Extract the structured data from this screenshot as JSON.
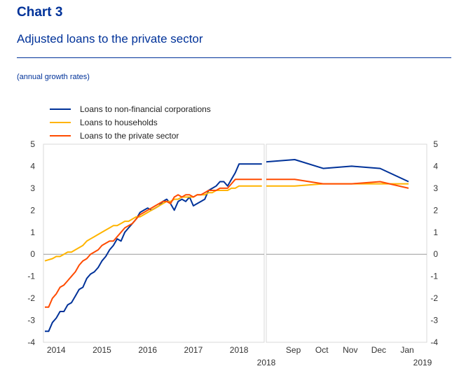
{
  "header": {
    "chart_label": "Chart 3",
    "title": "Adjusted loans to the private sector",
    "units": "(annual growth rates)"
  },
  "chart_data": {
    "type": "line",
    "ylim": [
      -4,
      5
    ],
    "y_ticks": [
      "5",
      "4",
      "3",
      "2",
      "1",
      "0",
      "-1",
      "-2",
      "-3",
      "-4"
    ],
    "grid": false,
    "legend": "top-left",
    "panels": [
      {
        "name": "monthly",
        "x_ticks": [
          "2014",
          "2015",
          "2016",
          "2017",
          "2018"
        ],
        "x": [
          2013.75,
          2013.833,
          2013.917,
          2014.0,
          2014.083,
          2014.167,
          2014.25,
          2014.333,
          2014.417,
          2014.5,
          2014.583,
          2014.667,
          2014.75,
          2014.833,
          2014.917,
          2015.0,
          2015.083,
          2015.167,
          2015.25,
          2015.333,
          2015.417,
          2015.5,
          2015.583,
          2015.667,
          2015.75,
          2015.833,
          2015.917,
          2016.0,
          2016.083,
          2016.167,
          2016.25,
          2016.333,
          2016.417,
          2016.5,
          2016.583,
          2016.667,
          2016.75,
          2016.833,
          2016.917,
          2017.0,
          2017.083,
          2017.167,
          2017.25,
          2017.333,
          2017.417,
          2017.5,
          2017.583,
          2017.667,
          2017.75,
          2017.833,
          2017.917,
          2018.0,
          2018.083,
          2018.167,
          2018.25,
          2018.333,
          2018.417,
          2018.5
        ],
        "series": [
          {
            "name": "Loans to non-financial corporations",
            "color": "#003299",
            "values": [
              -3.5,
              -3.5,
              -3.1,
              -2.9,
              -2.6,
              -2.6,
              -2.3,
              -2.2,
              -1.9,
              -1.6,
              -1.5,
              -1.1,
              -0.9,
              -0.8,
              -0.6,
              -0.3,
              -0.1,
              0.2,
              0.4,
              0.7,
              0.6,
              1.0,
              1.2,
              1.4,
              1.6,
              1.9,
              2.0,
              2.1,
              2.0,
              2.1,
              2.2,
              2.4,
              2.5,
              2.3,
              2.0,
              2.4,
              2.5,
              2.4,
              2.6,
              2.2,
              2.3,
              2.4,
              2.5,
              2.9,
              3.0,
              3.1,
              3.3,
              3.3,
              3.1,
              3.4,
              3.7,
              4.1,
              4.1,
              4.1,
              4.1,
              4.1,
              4.1,
              4.1
            ]
          },
          {
            "name": "Loans to households",
            "color": "#ffb400",
            "values": [
              -0.3,
              -0.25,
              -0.2,
              -0.1,
              -0.1,
              0.0,
              0.1,
              0.1,
              0.2,
              0.3,
              0.4,
              0.6,
              0.7,
              0.8,
              0.9,
              1.0,
              1.1,
              1.2,
              1.3,
              1.3,
              1.4,
              1.5,
              1.5,
              1.6,
              1.7,
              1.7,
              1.8,
              1.9,
              2.0,
              2.1,
              2.2,
              2.3,
              2.4,
              2.4,
              2.5,
              2.5,
              2.6,
              2.6,
              2.6,
              2.6,
              2.7,
              2.7,
              2.7,
              2.8,
              2.8,
              2.9,
              2.9,
              2.9,
              2.9,
              3.0,
              3.0,
              3.1,
              3.1,
              3.1,
              3.1,
              3.1,
              3.1,
              3.1
            ]
          },
          {
            "name": "Loans to the private sector",
            "color": "#ff4b00",
            "values": [
              -2.4,
              -2.4,
              -2.0,
              -1.8,
              -1.5,
              -1.4,
              -1.2,
              -1.0,
              -0.8,
              -0.5,
              -0.3,
              -0.2,
              0.0,
              0.1,
              0.2,
              0.4,
              0.5,
              0.6,
              0.6,
              0.8,
              1.0,
              1.2,
              1.3,
              1.4,
              1.6,
              1.8,
              1.9,
              2.0,
              2.1,
              2.2,
              2.3,
              2.4,
              2.4,
              2.3,
              2.6,
              2.7,
              2.6,
              2.7,
              2.7,
              2.6,
              2.7,
              2.7,
              2.8,
              2.9,
              2.9,
              2.9,
              3.0,
              3.0,
              3.0,
              3.2,
              3.4,
              3.4,
              3.4,
              3.4,
              3.4,
              3.4,
              3.4,
              3.4
            ]
          }
        ]
      },
      {
        "name": "recent months",
        "x_ticks": [
          "Sep",
          "Oct",
          "Nov",
          "Dec",
          "Jan"
        ],
        "x_year_labels": [
          "2018",
          "2019"
        ],
        "x": [
          "Aug 2018",
          "Sep 2018",
          "Oct 2018",
          "Nov 2018",
          "Dec 2018",
          "Jan 2019"
        ],
        "series": [
          {
            "name": "Loans to non-financial corporations",
            "color": "#003299",
            "values": [
              4.2,
              4.3,
              3.9,
              4.0,
              3.9,
              3.3
            ]
          },
          {
            "name": "Loans to households",
            "color": "#ffb400",
            "values": [
              3.1,
              3.1,
              3.2,
              3.2,
              3.2,
              3.2
            ]
          },
          {
            "name": "Loans to the private sector",
            "color": "#ff4b00",
            "values": [
              3.4,
              3.4,
              3.2,
              3.2,
              3.3,
              3.0
            ]
          }
        ]
      }
    ]
  }
}
